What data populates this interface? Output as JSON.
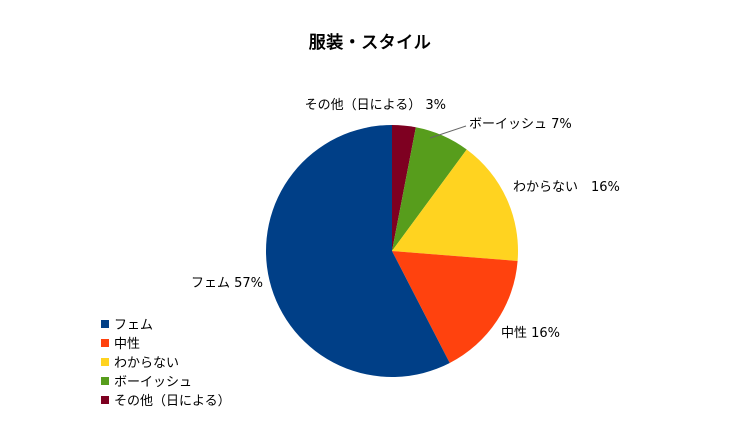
{
  "chart_data": {
    "type": "pie",
    "title": "服装・スタイル",
    "categories": [
      "フェム",
      "中性",
      "わからない",
      "ボーイッシュ",
      "その他（日による）"
    ],
    "values": [
      57,
      16,
      16,
      7,
      3
    ],
    "unit": "%",
    "data_labels": [
      "フェム 57%",
      "中性 16%",
      "わからない　16%",
      "ボーイッシュ 7%",
      "その他（日による） 3%"
    ],
    "colors": [
      "#003f87",
      "#ff420e",
      "#ffd320",
      "#579d1c",
      "#7e0021"
    ],
    "legend_position": "bottom-left",
    "legend": [
      "フェム",
      "中性",
      "わからない",
      "ボーイッシュ",
      "その他（日による）"
    ]
  }
}
